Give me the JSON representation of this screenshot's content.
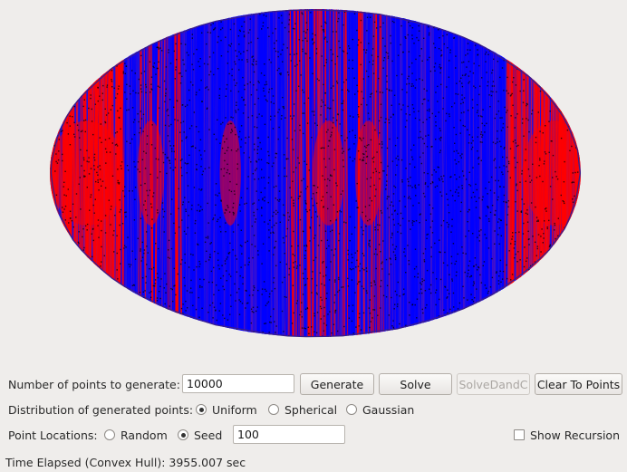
{
  "canvas": {
    "hull_color": "#3a1e8a",
    "line_color_low": "#ff0000",
    "line_color_high": "#0000ff",
    "point_color": "#000000"
  },
  "controls": {
    "num_points_label": "Number of points to generate:",
    "num_points_value": "10000",
    "generate_label": "Generate",
    "solve_label": "Solve",
    "solve_dandc_label": "SolveDandC",
    "clear_label": "Clear To Points",
    "distribution_label": "Distribution of generated points:",
    "distribution_options": [
      "Uniform",
      "Spherical",
      "Gaussian"
    ],
    "distribution_selected": "Uniform",
    "locations_label": "Point Locations:",
    "location_options": [
      "Random",
      "Seed"
    ],
    "location_selected": "Seed",
    "seed_value": "100",
    "show_recursion_label": "Show Recursion",
    "show_recursion_checked": false
  },
  "status": {
    "text": "Time Elapsed (Convex Hull): 3955.007 sec"
  }
}
